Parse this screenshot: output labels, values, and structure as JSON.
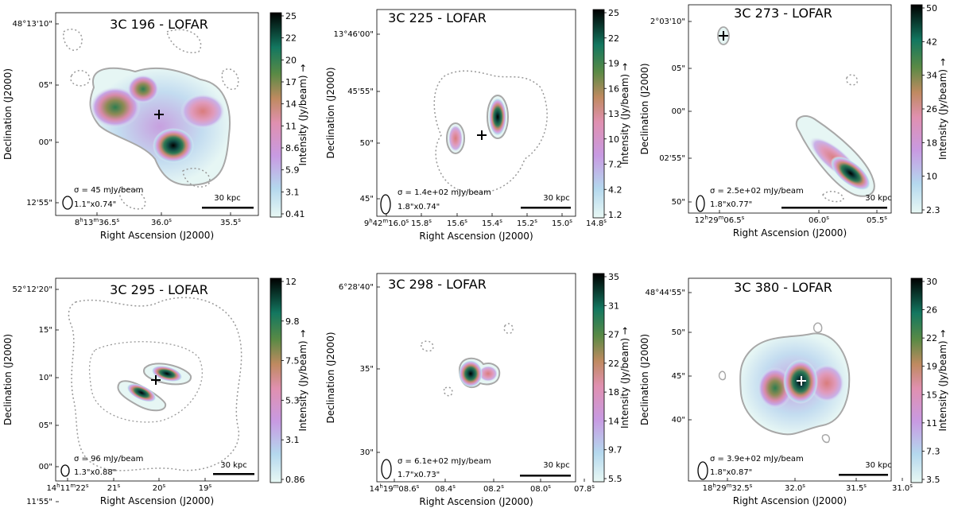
{
  "figure": {
    "xlabel": "Right Ascension (J2000)",
    "ylabel": "Declination (J2000)",
    "cbar_label": "Intensity (Jy/beam) →",
    "scalebar": "30 kpc"
  },
  "chart_data": [
    {
      "type": "heatmap",
      "title": "3C 196 - LOFAR",
      "sigma": "σ = 45 mJy/beam",
      "beam": "1.1\"x0.74\"",
      "ra_ticks": [
        "8h13m36.5s",
        "36.0s",
        "35.5s"
      ],
      "dec_ticks": [
        "48°13'10\"",
        "05\"",
        "00\"",
        "12'55\""
      ],
      "cbar_ticks": [
        "25",
        "22",
        "20",
        "17",
        "14",
        "11",
        "8.6",
        "5.9",
        "3.1",
        "0.41"
      ],
      "colors": {
        "vmin_color": "#e6f7f2",
        "vmax_color": "#000000"
      }
    },
    {
      "type": "heatmap",
      "title": "3C 225 - LOFAR",
      "sigma": "σ = 1.4e+02 mJy/beam",
      "beam": "1.8\"x0.74\"",
      "ra_ticks": [
        "9h42m16.0s",
        "15.8s",
        "15.6s",
        "15.4s",
        "15.2s",
        "15.0s",
        "14.8s"
      ],
      "dec_ticks": [
        "13°46'00\"",
        "45'55\"",
        "50\"",
        "45\""
      ],
      "cbar_ticks": [
        "25",
        "22",
        "19",
        "16",
        "13",
        "10",
        "7.2",
        "4.2",
        "1.2"
      ]
    },
    {
      "type": "heatmap",
      "title": "3C 273 - LOFAR",
      "sigma": "σ = 2.5e+02 mJy/beam",
      "beam": "1.8\"x0.77\"",
      "ra_ticks": [
        "12h29m06.5s",
        "06.0s",
        "05.5s"
      ],
      "dec_ticks": [
        "2°03'10\"",
        "05\"",
        "00\"",
        "02'55\"",
        "50\""
      ],
      "cbar_ticks": [
        "50",
        "42",
        "34",
        "26",
        "18",
        "10",
        "2.3"
      ]
    },
    {
      "type": "heatmap",
      "title": "3C 295 - LOFAR",
      "sigma": "σ = 96 mJy/beam",
      "beam": "1.3\"x0.88\"",
      "ra_ticks": [
        "14h11m22s",
        "21s",
        "20s",
        "19s"
      ],
      "dec_ticks": [
        "52°12'20\"",
        "15\"",
        "10\"",
        "05\"",
        "00\"",
        "11'55\""
      ],
      "cbar_ticks": [
        "12",
        "9.8",
        "7.5",
        "5.3",
        "3.1",
        "0.86"
      ]
    },
    {
      "type": "heatmap",
      "title": "3C 298 - LOFAR",
      "sigma": "σ = 6.1e+02 mJy/beam",
      "beam": "1.7\"x0.73\"",
      "ra_ticks": [
        "14h19m08.6s",
        "08.4s",
        "08.2s",
        "08.0s",
        "07.8s"
      ],
      "dec_ticks": [
        "6°28'40\"",
        "35\"",
        "30\""
      ],
      "cbar_ticks": [
        "35",
        "31",
        "27",
        "22",
        "18",
        "14",
        "9.7",
        "5.5"
      ]
    },
    {
      "type": "heatmap",
      "title": "3C 380 - LOFAR",
      "sigma": "σ = 3.9e+02 mJy/beam",
      "beam": "1.8\"x0.87\"",
      "ra_ticks": [
        "18h29m32.5s",
        "32.0s",
        "31.5s",
        "31.0s"
      ],
      "dec_ticks": [
        "48°44'55\"",
        "50\"",
        "45\"",
        "40\""
      ],
      "cbar_ticks": [
        "30",
        "26",
        "22",
        "19",
        "15",
        "11",
        "7.3",
        "3.5"
      ]
    }
  ]
}
